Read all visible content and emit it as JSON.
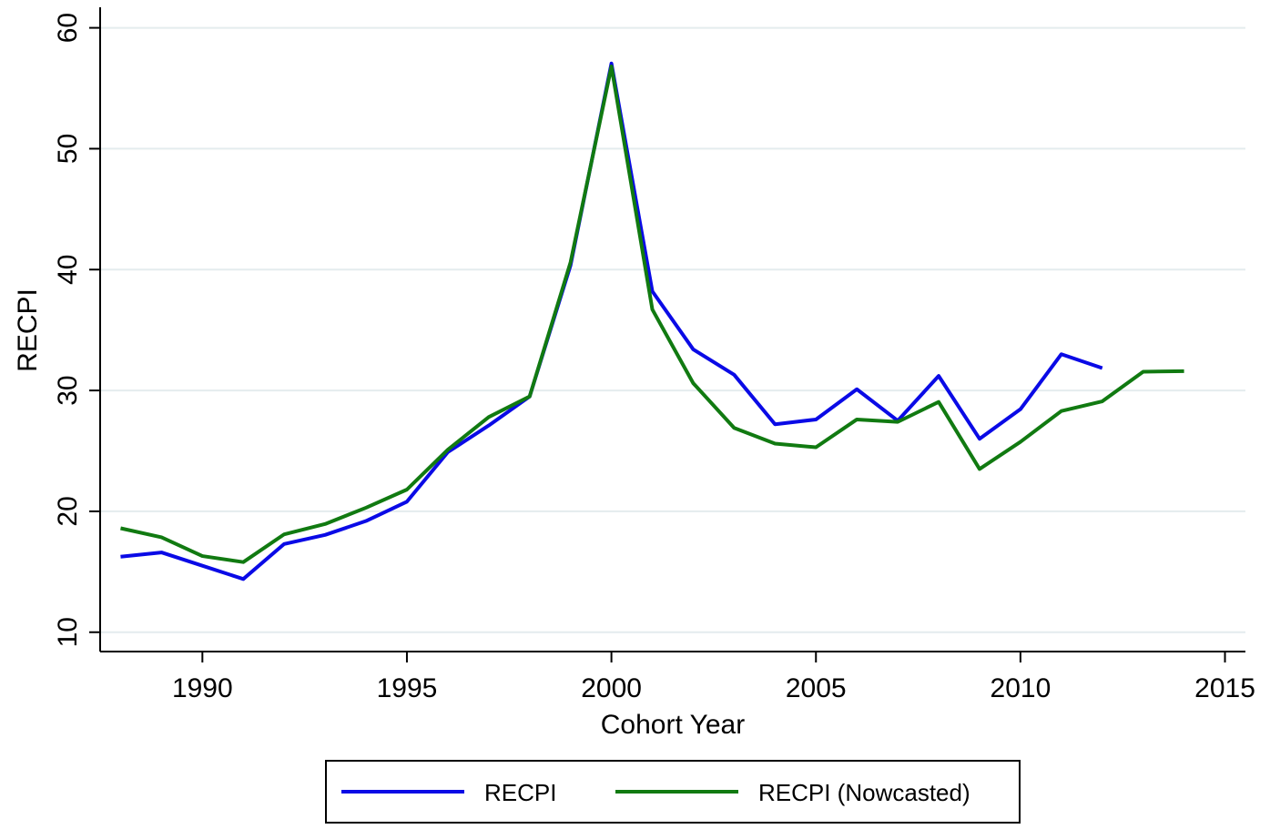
{
  "chart_data": {
    "type": "line",
    "x_label": "Cohort Year",
    "y_label": "RECPI",
    "x": [
      1988,
      1989,
      1990,
      1991,
      1992,
      1993,
      1994,
      1995,
      1996,
      1997,
      1998,
      1999,
      2000,
      2001,
      2002,
      2003,
      2004,
      2005,
      2006,
      2007,
      2008,
      2009,
      2010,
      2011,
      2012,
      2013,
      2014
    ],
    "series": [
      {
        "name": "RECPI",
        "color": "#0a0ae6",
        "values": [
          16.25,
          16.6,
          15.5,
          14.4,
          17.3,
          18.05,
          19.2,
          20.8,
          24.9,
          27.1,
          29.5,
          40.35,
          57.05,
          38.2,
          33.4,
          31.3,
          27.2,
          27.6,
          30.1,
          27.5,
          31.2,
          26.0,
          28.45,
          33.0,
          31.85,
          null,
          null
        ]
      },
      {
        "name": "RECPI (Nowcasted)",
        "color": "#117a11",
        "values": [
          18.6,
          17.85,
          16.3,
          15.8,
          18.1,
          18.95,
          20.3,
          21.8,
          25.1,
          27.8,
          29.5,
          40.6,
          56.8,
          36.7,
          30.6,
          26.9,
          25.6,
          25.3,
          27.6,
          27.4,
          29.05,
          23.5,
          25.75,
          28.3,
          29.1,
          31.55,
          31.6
        ]
      }
    ],
    "xlim": [
      1987.5,
      2015.5
    ],
    "xticks": [
      1990,
      1995,
      2000,
      2005,
      2010,
      2015
    ],
    "ylim": [
      8.4,
      61.7
    ],
    "yticks": [
      10,
      20,
      30,
      40,
      50,
      60
    ],
    "grid": true,
    "legend": "bottom"
  }
}
